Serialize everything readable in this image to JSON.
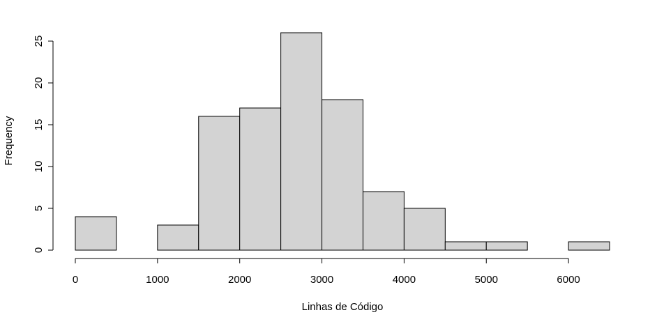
{
  "chart_data": {
    "type": "bar",
    "title": "",
    "xlabel": "Linhas de Código",
    "ylabel": "Frequency",
    "bins": [
      [
        0,
        500
      ],
      [
        500,
        1000
      ],
      [
        1000,
        1500
      ],
      [
        1500,
        2000
      ],
      [
        2000,
        2500
      ],
      [
        2500,
        3000
      ],
      [
        3000,
        3500
      ],
      [
        3500,
        4000
      ],
      [
        4000,
        4500
      ],
      [
        4500,
        5000
      ],
      [
        5000,
        5500
      ],
      [
        5500,
        6000
      ],
      [
        6000,
        6500
      ]
    ],
    "values": [
      4,
      0,
      3,
      16,
      17,
      26,
      18,
      7,
      5,
      1,
      1,
      0,
      1
    ],
    "xlim": [
      0,
      6500
    ],
    "ylim": [
      0,
      26
    ],
    "x_ticks": [
      0,
      1000,
      2000,
      3000,
      4000,
      5000,
      6000
    ],
    "x_tick_labels": [
      "0",
      "1000",
      "2000",
      "3000",
      "4000",
      "5000",
      "6000"
    ],
    "y_ticks": [
      0,
      5,
      10,
      15,
      20,
      25
    ],
    "y_tick_labels": [
      "0",
      "5",
      "10",
      "15",
      "20",
      "25"
    ],
    "bar_fill": "#d3d3d3",
    "bar_stroke": "#000000",
    "grid": false,
    "legend": "none"
  }
}
